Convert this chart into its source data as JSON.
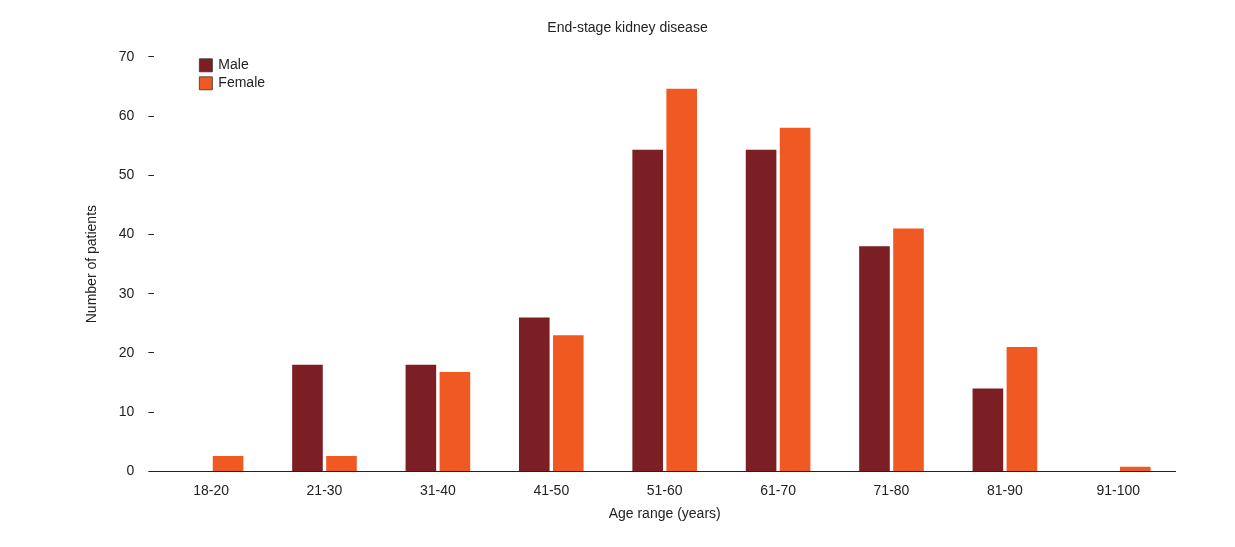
{
  "chart_data": {
    "type": "bar",
    "title": "End-stage kidney disease",
    "xlabel": "Age range (years)",
    "ylabel": "Number of patients",
    "categories": [
      "18-20",
      "21-30",
      "31-40",
      "41-50",
      "51-60",
      "61-70",
      "71-80",
      "81-90",
      "91-100"
    ],
    "series": [
      {
        "name": "Male",
        "color": "#7b1f24",
        "values": [
          0,
          18,
          18,
          26,
          54.3,
          54.3,
          38,
          14,
          0
        ]
      },
      {
        "name": "Female",
        "color": "#f05a22",
        "values": [
          2.6,
          2.6,
          16.8,
          23,
          64.6,
          58,
          41,
          21,
          0.8
        ]
      }
    ],
    "ylim": [
      0,
      70
    ],
    "yticks": [
      0,
      10,
      20,
      30,
      40,
      50,
      60,
      70
    ],
    "grid": false,
    "legend": "top left"
  }
}
